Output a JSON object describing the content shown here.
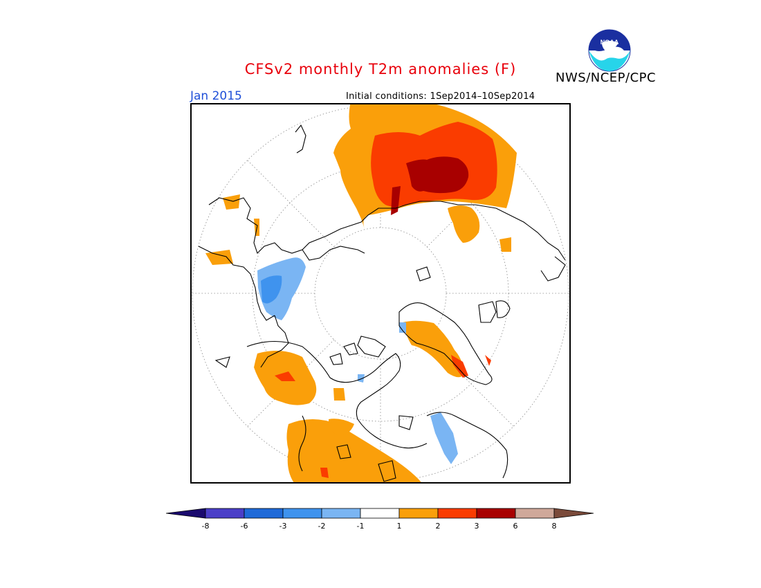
{
  "header": {
    "title": "CFSv2 monthly T2m anomalies (F)",
    "org": "NWS/NCEP/CPC",
    "logo_text": "NOAA",
    "period": "Jan 2015",
    "initial_conditions": "Initial conditions: 1Sep2014–10Sep2014"
  },
  "colorbar": {
    "bins": [
      {
        "color": "#1a0a6e"
      },
      {
        "color": "#4b3fc8"
      },
      {
        "color": "#1f6ad8"
      },
      {
        "color": "#3f93ee"
      },
      {
        "color": "#7ab5f3"
      },
      {
        "color": "#ffffff"
      },
      {
        "color": "#fa9f0a"
      },
      {
        "color": "#fa3c00"
      },
      {
        "color": "#a80000"
      },
      {
        "color": "#cfa89a"
      },
      {
        "color": "#7a4a3a"
      }
    ],
    "labels": [
      "-8",
      "-6",
      "-3",
      "-2",
      "-1",
      "1",
      "2",
      "3",
      "6",
      "8"
    ]
  },
  "map": {
    "projection": "north-polar-stereographic",
    "colors": {
      "warm1": "#fa9f0a",
      "warm2": "#fa3c00",
      "warm3": "#a80000",
      "cool1": "#7ab5f3",
      "cool2": "#3f93ee"
    }
  }
}
